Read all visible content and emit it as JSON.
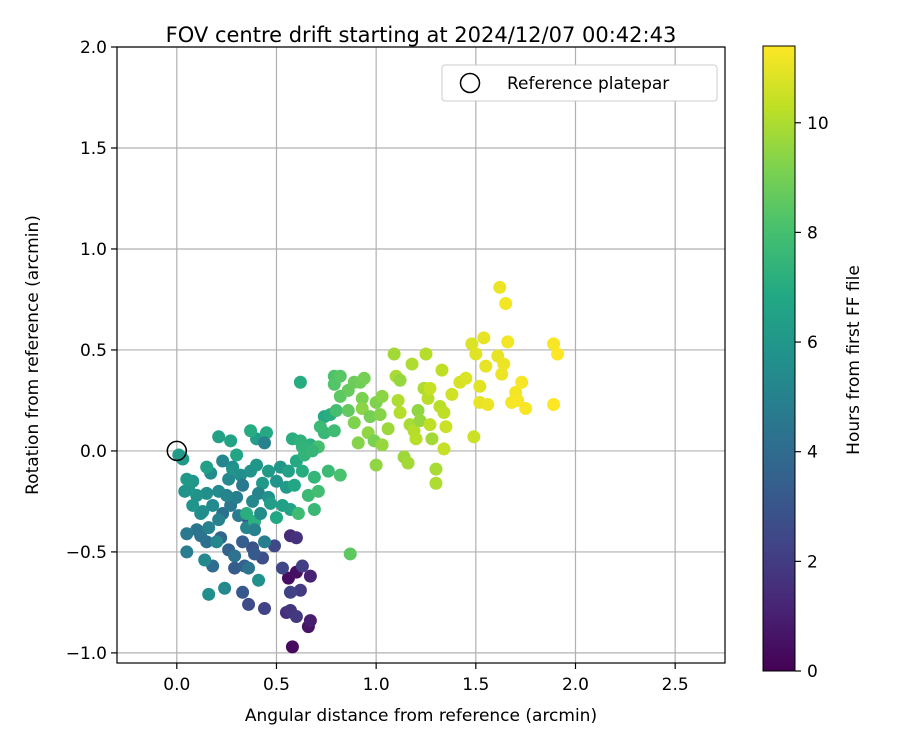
{
  "chart_data": {
    "type": "scatter",
    "title": "FOV centre drift starting at 2024/12/07 00:42:43",
    "xlabel": "Angular distance from reference (arcmin)",
    "ylabel": "Rotation from reference (arcmin)",
    "xlim": [
      -0.3,
      2.75
    ],
    "ylim": [
      -1.05,
      2.0
    ],
    "x_ticks": [
      0.0,
      0.5,
      1.0,
      1.5,
      2.0,
      2.5
    ],
    "x_tick_labels": [
      "0.0",
      "0.5",
      "1.0",
      "1.5",
      "2.0",
      "2.5"
    ],
    "y_ticks": [
      -1.0,
      -0.5,
      0.0,
      0.5,
      1.0,
      1.5,
      2.0
    ],
    "y_tick_labels": [
      "−1.0",
      "−0.5",
      "0.0",
      "0.5",
      "1.0",
      "1.5",
      "2.0"
    ],
    "grid": true,
    "legend": {
      "placement": "top-right",
      "entries": [
        {
          "label": "Reference platepar",
          "marker": "open-circle",
          "color": "#000000"
        }
      ]
    },
    "reference_point": {
      "x": 0.0,
      "y": 0.0
    },
    "colorbar": {
      "label": "Hours from first FF file",
      "colormap": "viridis",
      "range": [
        0,
        11.4
      ],
      "ticks": [
        0,
        2,
        4,
        6,
        8,
        10
      ],
      "tick_labels": [
        "0",
        "2",
        "4",
        "6",
        "8",
        "10"
      ]
    },
    "points": [
      {
        "x": 0.58,
        "y": -0.97,
        "h": 0.3
      },
      {
        "x": 0.66,
        "y": -0.87,
        "h": 0.6
      },
      {
        "x": 0.67,
        "y": -0.84,
        "h": 0.9
      },
      {
        "x": 0.56,
        "y": -0.63,
        "h": 0.4
      },
      {
        "x": 0.6,
        "y": -0.6,
        "h": 0.5
      },
      {
        "x": 0.67,
        "y": -0.62,
        "h": 1.1
      },
      {
        "x": 0.57,
        "y": -0.42,
        "h": 1.4
      },
      {
        "x": 0.6,
        "y": -0.43,
        "h": 1.6
      },
      {
        "x": 0.55,
        "y": -0.8,
        "h": 1.5
      },
      {
        "x": 0.57,
        "y": -0.79,
        "h": 1.7
      },
      {
        "x": 0.6,
        "y": -0.82,
        "h": 1.9
      },
      {
        "x": 0.62,
        "y": -0.69,
        "h": 2.0
      },
      {
        "x": 0.63,
        "y": -0.57,
        "h": 2.1
      },
      {
        "x": 0.57,
        "y": -0.7,
        "h": 2.2
      },
      {
        "x": 0.53,
        "y": -0.58,
        "h": 2.4
      },
      {
        "x": 0.49,
        "y": -0.47,
        "h": 2.5
      },
      {
        "x": 0.44,
        "y": -0.78,
        "h": 2.3
      },
      {
        "x": 0.36,
        "y": -0.76,
        "h": 2.6
      },
      {
        "x": 0.43,
        "y": -0.53,
        "h": 2.7
      },
      {
        "x": 0.38,
        "y": -0.48,
        "h": 2.9
      },
      {
        "x": 0.33,
        "y": -0.7,
        "h": 3.1
      },
      {
        "x": 0.29,
        "y": -0.58,
        "h": 3.3
      },
      {
        "x": 0.34,
        "y": -0.57,
        "h": 3.5
      },
      {
        "x": 0.39,
        "y": -0.51,
        "h": 3.2
      },
      {
        "x": 0.36,
        "y": -0.34,
        "h": 3.0
      },
      {
        "x": 0.33,
        "y": -0.45,
        "h": 3.4
      },
      {
        "x": 0.26,
        "y": -0.49,
        "h": 3.6
      },
      {
        "x": 0.22,
        "y": -0.43,
        "h": 3.8
      },
      {
        "x": 0.18,
        "y": -0.57,
        "h": 4.0
      },
      {
        "x": 0.15,
        "y": -0.45,
        "h": 4.1
      },
      {
        "x": 0.12,
        "y": -0.42,
        "h": 4.3
      },
      {
        "x": 0.1,
        "y": -0.39,
        "h": 4.4
      },
      {
        "x": 0.05,
        "y": -0.41,
        "h": 4.6
      },
      {
        "x": 0.05,
        "y": -0.5,
        "h": 4.8
      },
      {
        "x": 0.16,
        "y": -0.38,
        "h": 5.0
      },
      {
        "x": 0.2,
        "y": -0.45,
        "h": 5.2
      },
      {
        "x": 0.23,
        "y": -0.31,
        "h": 4.2
      },
      {
        "x": 0.27,
        "y": -0.27,
        "h": 4.5
      },
      {
        "x": 0.31,
        "y": -0.32,
        "h": 4.7
      },
      {
        "x": 0.35,
        "y": -0.38,
        "h": 5.1
      },
      {
        "x": 0.3,
        "y": -0.23,
        "h": 4.9
      },
      {
        "x": 0.26,
        "y": -0.14,
        "h": 5.3
      },
      {
        "x": 0.21,
        "y": -0.2,
        "h": 5.4
      },
      {
        "x": 0.17,
        "y": -0.11,
        "h": 5.5
      },
      {
        "x": 0.15,
        "y": -0.21,
        "h": 5.6
      },
      {
        "x": 0.13,
        "y": -0.3,
        "h": 5.7
      },
      {
        "x": 0.1,
        "y": -0.22,
        "h": 5.8
      },
      {
        "x": 0.08,
        "y": -0.15,
        "h": 5.9
      },
      {
        "x": 0.06,
        "y": -0.19,
        "h": 6.0
      },
      {
        "x": 0.05,
        "y": -0.14,
        "h": 6.1
      },
      {
        "x": 0.03,
        "y": -0.04,
        "h": 6.2
      },
      {
        "x": 0.01,
        "y": -0.02,
        "h": 6.3
      },
      {
        "x": 0.15,
        "y": -0.08,
        "h": 6.4
      },
      {
        "x": 0.21,
        "y": 0.07,
        "h": 6.5
      },
      {
        "x": 0.27,
        "y": 0.05,
        "h": 6.6
      },
      {
        "x": 0.3,
        "y": -0.02,
        "h": 6.7
      },
      {
        "x": 0.23,
        "y": -0.05,
        "h": 5.2
      },
      {
        "x": 0.28,
        "y": -0.08,
        "h": 5.4
      },
      {
        "x": 0.32,
        "y": -0.12,
        "h": 5.6
      },
      {
        "x": 0.37,
        "y": -0.1,
        "h": 5.8
      },
      {
        "x": 0.4,
        "y": -0.07,
        "h": 6.0
      },
      {
        "x": 0.43,
        "y": -0.16,
        "h": 6.1
      },
      {
        "x": 0.46,
        "y": -0.1,
        "h": 6.2
      },
      {
        "x": 0.4,
        "y": 0.06,
        "h": 6.3
      },
      {
        "x": 0.45,
        "y": 0.09,
        "h": 6.9
      },
      {
        "x": 0.37,
        "y": 0.1,
        "h": 7.0
      },
      {
        "x": 0.44,
        "y": 0.04,
        "h": 5.0
      },
      {
        "x": 0.41,
        "y": -0.21,
        "h": 5.1
      },
      {
        "x": 0.38,
        "y": -0.25,
        "h": 5.3
      },
      {
        "x": 0.35,
        "y": -0.31,
        "h": 7.1
      },
      {
        "x": 0.39,
        "y": -0.35,
        "h": 7.2
      },
      {
        "x": 0.42,
        "y": -0.31,
        "h": 5.5
      },
      {
        "x": 0.46,
        "y": -0.23,
        "h": 5.7
      },
      {
        "x": 0.5,
        "y": -0.15,
        "h": 5.9
      },
      {
        "x": 0.52,
        "y": -0.08,
        "h": 6.0
      },
      {
        "x": 0.55,
        "y": -0.18,
        "h": 6.2
      },
      {
        "x": 0.53,
        "y": -0.27,
        "h": 6.4
      },
      {
        "x": 0.57,
        "y": -0.29,
        "h": 6.6
      },
      {
        "x": 0.59,
        "y": -0.17,
        "h": 6.8
      },
      {
        "x": 0.6,
        "y": -0.05,
        "h": 6.9
      },
      {
        "x": 0.63,
        "y": -0.1,
        "h": 7.0
      },
      {
        "x": 0.58,
        "y": 0.06,
        "h": 7.1
      },
      {
        "x": 0.62,
        "y": 0.05,
        "h": 7.3
      },
      {
        "x": 0.62,
        "y": 0.34,
        "h": 7.0
      },
      {
        "x": 0.64,
        "y": -0.02,
        "h": 7.4
      },
      {
        "x": 0.67,
        "y": 0.03,
        "h": 7.2
      },
      {
        "x": 0.69,
        "y": -0.13,
        "h": 7.5
      },
      {
        "x": 0.69,
        "y": -0.29,
        "h": 7.6
      },
      {
        "x": 0.66,
        "y": -0.22,
        "h": 7.7
      },
      {
        "x": 0.61,
        "y": -0.31,
        "h": 7.8
      },
      {
        "x": 0.71,
        "y": -0.2,
        "h": 7.9
      },
      {
        "x": 0.71,
        "y": 0.02,
        "h": 8.0
      },
      {
        "x": 0.74,
        "y": 0.17,
        "h": 6.9
      },
      {
        "x": 0.77,
        "y": 0.18,
        "h": 7.1
      },
      {
        "x": 0.74,
        "y": 0.09,
        "h": 7.6
      },
      {
        "x": 0.76,
        "y": -0.1,
        "h": 7.7
      },
      {
        "x": 0.79,
        "y": 0.1,
        "h": 7.8
      },
      {
        "x": 0.8,
        "y": 0.2,
        "h": 8.0
      },
      {
        "x": 0.82,
        "y": -0.12,
        "h": 8.1
      },
      {
        "x": 0.79,
        "y": 0.37,
        "h": 8.2
      },
      {
        "x": 0.79,
        "y": 0.33,
        "h": 8.3
      },
      {
        "x": 0.82,
        "y": 0.37,
        "h": 8.4
      },
      {
        "x": 0.82,
        "y": 0.27,
        "h": 8.5
      },
      {
        "x": 0.86,
        "y": 0.2,
        "h": 8.6
      },
      {
        "x": 0.87,
        "y": -0.51,
        "h": 8.5
      },
      {
        "x": 0.86,
        "y": 0.3,
        "h": 8.7
      },
      {
        "x": 0.89,
        "y": 0.34,
        "h": 8.8
      },
      {
        "x": 0.92,
        "y": 0.34,
        "h": 8.9
      },
      {
        "x": 0.94,
        "y": 0.36,
        "h": 9.0
      },
      {
        "x": 0.93,
        "y": 0.26,
        "h": 9.1
      },
      {
        "x": 0.89,
        "y": 0.14,
        "h": 9.2
      },
      {
        "x": 0.91,
        "y": 0.04,
        "h": 9.3
      },
      {
        "x": 0.93,
        "y": 0.21,
        "h": 9.4
      },
      {
        "x": 0.96,
        "y": 0.09,
        "h": 9.5
      },
      {
        "x": 0.97,
        "y": 0.17,
        "h": 9.0
      },
      {
        "x": 0.99,
        "y": 0.05,
        "h": 9.1
      },
      {
        "x": 1.0,
        "y": 0.24,
        "h": 9.2
      },
      {
        "x": 1.02,
        "y": 0.18,
        "h": 9.3
      },
      {
        "x": 1.03,
        "y": 0.27,
        "h": 9.4
      },
      {
        "x": 1.0,
        "y": -0.07,
        "h": 9.5
      },
      {
        "x": 1.03,
        "y": 0.03,
        "h": 9.6
      },
      {
        "x": 1.06,
        "y": 0.11,
        "h": 9.7
      },
      {
        "x": 1.09,
        "y": 0.48,
        "h": 9.8
      },
      {
        "x": 1.1,
        "y": 0.37,
        "h": 9.9
      },
      {
        "x": 1.11,
        "y": 0.25,
        "h": 10.0
      },
      {
        "x": 1.12,
        "y": 0.19,
        "h": 10.1
      },
      {
        "x": 1.12,
        "y": 0.35,
        "h": 9.6
      },
      {
        "x": 1.14,
        "y": -0.03,
        "h": 9.7
      },
      {
        "x": 1.16,
        "y": -0.06,
        "h": 9.8
      },
      {
        "x": 1.17,
        "y": 0.13,
        "h": 9.9
      },
      {
        "x": 1.18,
        "y": 0.43,
        "h": 10.0
      },
      {
        "x": 1.19,
        "y": 0.1,
        "h": 10.1
      },
      {
        "x": 1.2,
        "y": 0.06,
        "h": 10.2
      },
      {
        "x": 1.21,
        "y": 0.2,
        "h": 9.5
      },
      {
        "x": 1.22,
        "y": 0.15,
        "h": 9.6
      },
      {
        "x": 1.24,
        "y": 0.31,
        "h": 10.0
      },
      {
        "x": 1.25,
        "y": 0.48,
        "h": 10.1
      },
      {
        "x": 1.26,
        "y": 0.26,
        "h": 10.2
      },
      {
        "x": 1.27,
        "y": 0.13,
        "h": 10.3
      },
      {
        "x": 1.27,
        "y": 0.31,
        "h": 10.4
      },
      {
        "x": 1.28,
        "y": 0.06,
        "h": 9.8
      },
      {
        "x": 1.3,
        "y": -0.09,
        "h": 9.9
      },
      {
        "x": 1.3,
        "y": -0.16,
        "h": 10.0
      },
      {
        "x": 1.32,
        "y": 0.22,
        "h": 10.2
      },
      {
        "x": 1.33,
        "y": 0.4,
        "h": 10.3
      },
      {
        "x": 1.34,
        "y": 0.01,
        "h": 10.4
      },
      {
        "x": 1.35,
        "y": 0.12,
        "h": 10.5
      },
      {
        "x": 1.34,
        "y": 0.19,
        "h": 10.3
      },
      {
        "x": 1.38,
        "y": 0.28,
        "h": 10.6
      },
      {
        "x": 1.42,
        "y": 0.34,
        "h": 10.7
      },
      {
        "x": 1.45,
        "y": 0.36,
        "h": 10.8
      },
      {
        "x": 1.48,
        "y": 0.53,
        "h": 10.8
      },
      {
        "x": 1.49,
        "y": 0.07,
        "h": 10.5
      },
      {
        "x": 1.5,
        "y": 0.48,
        "h": 10.9
      },
      {
        "x": 1.52,
        "y": 0.24,
        "h": 11.0
      },
      {
        "x": 1.52,
        "y": 0.32,
        "h": 10.9
      },
      {
        "x": 1.54,
        "y": 0.56,
        "h": 11.0
      },
      {
        "x": 1.55,
        "y": 0.42,
        "h": 11.0
      },
      {
        "x": 1.56,
        "y": 0.23,
        "h": 11.1
      },
      {
        "x": 1.61,
        "y": 0.47,
        "h": 11.0
      },
      {
        "x": 1.62,
        "y": 0.81,
        "h": 11.1
      },
      {
        "x": 1.63,
        "y": 0.38,
        "h": 11.1
      },
      {
        "x": 1.64,
        "y": 0.43,
        "h": 11.1
      },
      {
        "x": 1.65,
        "y": 0.73,
        "h": 11.2
      },
      {
        "x": 1.66,
        "y": 0.54,
        "h": 11.2
      },
      {
        "x": 1.68,
        "y": 0.24,
        "h": 11.2
      },
      {
        "x": 1.7,
        "y": 0.29,
        "h": 11.2
      },
      {
        "x": 1.71,
        "y": 0.25,
        "h": 11.3
      },
      {
        "x": 1.73,
        "y": 0.34,
        "h": 11.3
      },
      {
        "x": 1.75,
        "y": 0.21,
        "h": 11.3
      },
      {
        "x": 1.89,
        "y": 0.53,
        "h": 11.3
      },
      {
        "x": 1.89,
        "y": 0.23,
        "h": 11.4
      },
      {
        "x": 1.91,
        "y": 0.48,
        "h": 11.4
      },
      {
        "x": 0.24,
        "y": -0.68,
        "h": 5.3
      },
      {
        "x": 0.16,
        "y": -0.71,
        "h": 5.6
      },
      {
        "x": 0.41,
        "y": -0.64,
        "h": 5.7
      },
      {
        "x": 0.36,
        "y": -0.58,
        "h": 4.4
      },
      {
        "x": 0.29,
        "y": -0.52,
        "h": 4.3
      },
      {
        "x": 0.44,
        "y": -0.45,
        "h": 4.9
      },
      {
        "x": 0.39,
        "y": -0.39,
        "h": 5.0
      },
      {
        "x": 0.33,
        "y": -0.17,
        "h": 4.6
      },
      {
        "x": 0.12,
        "y": -0.31,
        "h": 5.5
      },
      {
        "x": 0.08,
        "y": -0.27,
        "h": 5.9
      },
      {
        "x": 0.14,
        "y": -0.54,
        "h": 5.3
      },
      {
        "x": 0.04,
        "y": -0.2,
        "h": 5.8
      },
      {
        "x": 0.02,
        "y": -0.03,
        "h": 6.1
      },
      {
        "x": 0.18,
        "y": -0.27,
        "h": 5.4
      },
      {
        "x": 0.25,
        "y": -0.22,
        "h": 5.1
      },
      {
        "x": 0.21,
        "y": -0.34,
        "h": 5.0
      },
      {
        "x": 0.28,
        "y": -0.09,
        "h": 5.8
      },
      {
        "x": 0.47,
        "y": -0.26,
        "h": 6.3
      },
      {
        "x": 0.5,
        "y": -0.33,
        "h": 6.8
      },
      {
        "x": 0.56,
        "y": -0.1,
        "h": 6.5
      },
      {
        "x": 0.63,
        "y": 0.02,
        "h": 7.4
      },
      {
        "x": 0.68,
        "y": 0.0,
        "h": 7.5
      },
      {
        "x": 0.72,
        "y": 0.12,
        "h": 7.7
      }
    ]
  }
}
